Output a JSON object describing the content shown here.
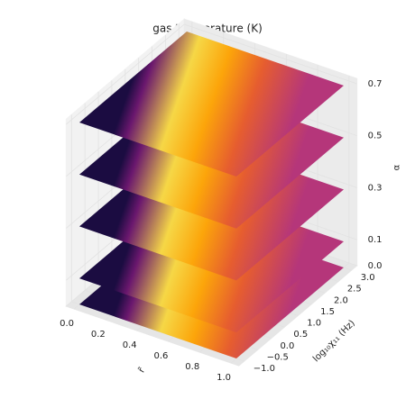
{
  "chart_data": {
    "type": "stacked-contour-3d",
    "title": "gas temperature (K)",
    "xlabel": "r̃",
    "ylabel": "log₁₀χ₁₁ (Hz)",
    "zlabel": "α",
    "xlim": [
      -0.05,
      1.05
    ],
    "ylim": [
      -1.2,
      3.2
    ],
    "zlim": [
      0,
      0.72
    ],
    "xticks": [
      {
        "value": 0,
        "label": "0.0"
      },
      0.2,
      0.4,
      0.6,
      0.8,
      {
        "value": 1,
        "label": "1.0"
      }
    ],
    "yticks": [
      {
        "value": -1,
        "label": "−1.0"
      },
      {
        "value": -0.5,
        "label": "−0.5"
      },
      {
        "value": 0,
        "label": "0.0"
      },
      0.5,
      {
        "value": 1,
        "label": "1.0"
      },
      1.5,
      {
        "value": 2,
        "label": "2.0"
      },
      2.5,
      {
        "value": 3,
        "label": "3.0"
      }
    ],
    "zticks": [
      {
        "value": 0,
        "label": "0.0"
      },
      0.1,
      0.3,
      0.5,
      0.7
    ],
    "z_levels": [
      0,
      0.1,
      0.3,
      0.5,
      0.7
    ],
    "colormap": [
      "#1b0c41",
      "#6a176e",
      "#f6d746",
      "#fca50a",
      "#e65d2f",
      "#b5367a"
    ],
    "grid": true
  }
}
